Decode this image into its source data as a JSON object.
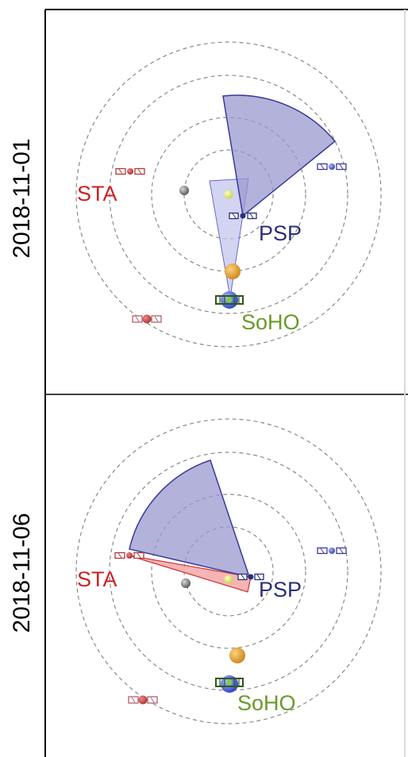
{
  "panels": [
    {
      "date": "2018-11-01",
      "labels": {
        "sta": "STA",
        "psp": "PSP",
        "soho": "SoHO"
      }
    },
    {
      "date": "2018-11-06",
      "labels": {
        "sta": "STA",
        "psp": "PSP",
        "soho": "SoHO"
      }
    }
  ],
  "colors": {
    "sta": "#cc2222",
    "psp": "#2a2e7a",
    "soho": "#6a9a2a",
    "fov_psp_fill": "#9a98cf",
    "fov_psp_stroke": "#3a3a9a",
    "fov_narrow_fill": "#c4c6ee",
    "fov_sta_fill": "#f2a3a3",
    "fov_sta_stroke": "#cc3333",
    "orbit": "#8a8a8a",
    "frame": "#000000"
  }
}
